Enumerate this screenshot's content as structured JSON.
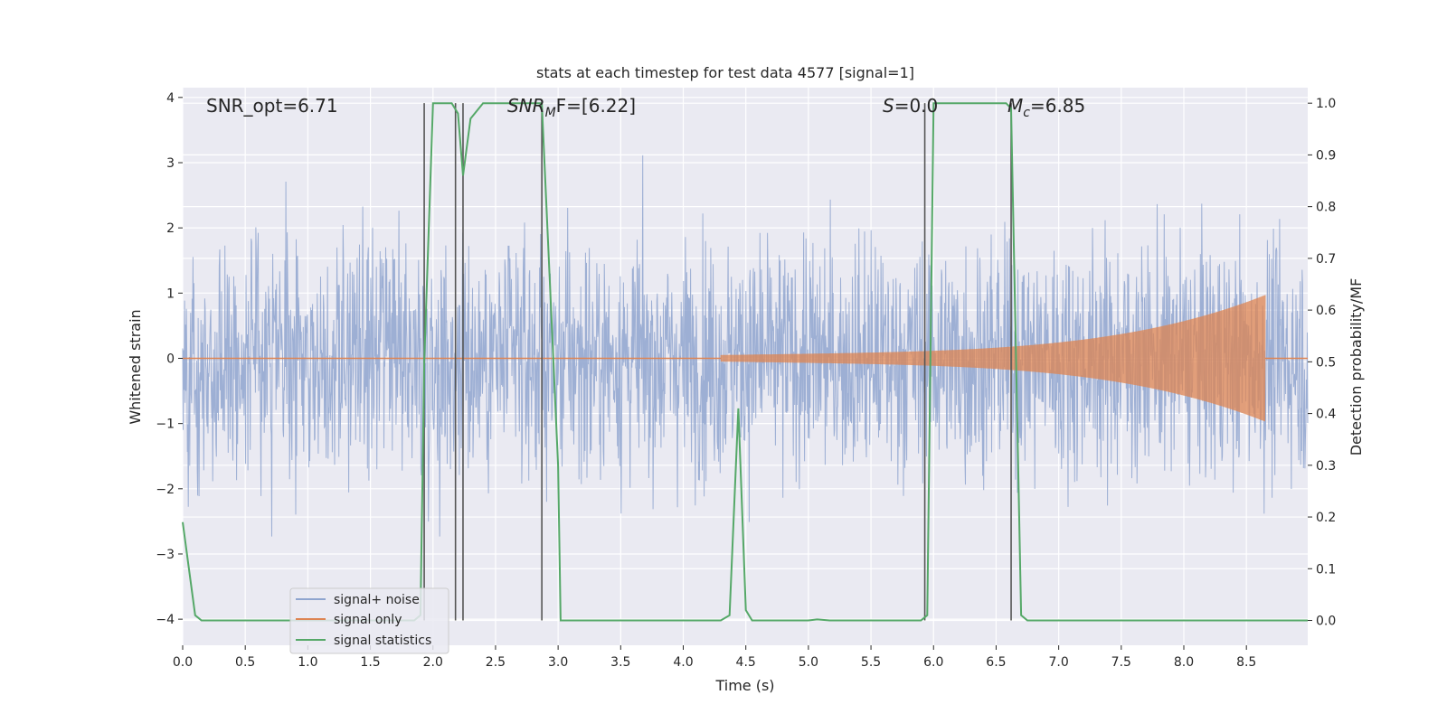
{
  "chart_data": {
    "type": "line",
    "title": "stats at each timestep for test data 4577 [signal=1]",
    "xlabel": "Time (s)",
    "ylabel_left": "Whitened strain",
    "ylabel_right": "Detection probability/MF",
    "xlim": [
      0.0,
      8.99
    ],
    "ylim_left": [
      -4.4,
      4.15
    ],
    "ylim_right": [
      -0.048,
      1.03
    ],
    "x_ticks": [
      "0.0",
      "0.5",
      "1.0",
      "1.5",
      "2.0",
      "2.5",
      "3.0",
      "3.5",
      "4.0",
      "4.5",
      "5.0",
      "5.5",
      "6.0",
      "6.5",
      "7.0",
      "7.5",
      "8.0",
      "8.5"
    ],
    "y_left_ticks": [
      "4",
      "3",
      "2",
      "1",
      "0",
      "−1",
      "−2",
      "−3",
      "−4"
    ],
    "y_right_ticks": [
      "1.0",
      "0.9",
      "0.8",
      "0.7",
      "0.6",
      "0.5",
      "0.4",
      "0.3",
      "0.2",
      "0.1",
      "0.0"
    ],
    "grid": true,
    "legend_position": "lower-left",
    "annotations": {
      "snr_opt": "SNR_opt=6.71",
      "snr_mf_base": "SNR",
      "snr_mf_sub": "M",
      "snr_mf_rest": "F=[6.22]",
      "s_base": "S",
      "s_rest": "=0.0",
      "mc_base": "M",
      "mc_sub": "c",
      "mc_rest": "=6.85"
    },
    "vertical_lines_x": [
      1.93,
      2.18,
      2.24,
      2.87,
      5.93,
      6.62
    ],
    "series": [
      {
        "name": "signal+ noise",
        "color": "#8fa5cf",
        "axis": "left",
        "envelope_note": "dense whitened noise, roughly within ±3.5",
        "x_range": [
          0.0,
          8.99
        ]
      },
      {
        "name": "signal only",
        "color": "#dd8452",
        "axis": "left",
        "chirp_start": 4.3,
        "chirp_end": 8.65,
        "peak_amplitude": 0.8
      },
      {
        "name": "signal statistics",
        "color": "#55a868",
        "axis": "right",
        "x": [
          0.0,
          0.1,
          0.15,
          1.85,
          1.9,
          1.93,
          2.0,
          2.15,
          2.2,
          2.24,
          2.3,
          2.4,
          2.85,
          2.87,
          3.0,
          3.02,
          4.3,
          4.37,
          4.44,
          4.5,
          4.55,
          5.0,
          5.07,
          5.17,
          5.9,
          5.95,
          6.0,
          6.58,
          6.62,
          6.7,
          6.75,
          8.99
        ],
        "values": [
          0.19,
          0.01,
          0.0,
          0.0,
          0.01,
          0.5,
          1.0,
          1.0,
          0.98,
          0.86,
          0.97,
          1.0,
          1.0,
          1.0,
          0.3,
          0.0,
          0.0,
          0.01,
          0.41,
          0.02,
          0.0,
          0.0,
          0.002,
          0.0,
          0.0,
          0.01,
          1.0,
          1.0,
          0.99,
          0.01,
          0.0,
          0.0
        ]
      }
    ]
  }
}
